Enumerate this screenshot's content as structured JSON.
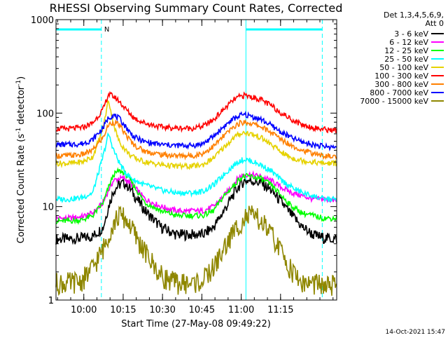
{
  "chart_data": {
    "type": "line",
    "title": "RHESSI Observing Summary Count Rates, Corrected",
    "xlabel": "Start Time (27-May-08 09:49:22)",
    "ylabel_prefix": "Corrected Count Rate (s",
    "ylabel_sup1": "-1",
    "ylabel_mid": " detector",
    "ylabel_sup2": "-1",
    "ylabel_suffix": ")",
    "x_unit": "minutes since 09:49:22",
    "xlim": [
      0,
      107
    ],
    "ylim": [
      1,
      1000
    ],
    "yscale": "log",
    "x_ticks": [
      {
        "value": 10.6,
        "label": "10:00"
      },
      {
        "value": 25.6,
        "label": "10:15"
      },
      {
        "value": 40.6,
        "label": "10:30"
      },
      {
        "value": 55.6,
        "label": "10:45"
      },
      {
        "value": 70.6,
        "label": "11:00"
      },
      {
        "value": 85.6,
        "label": "11:15"
      }
    ],
    "y_ticks": [
      {
        "value": 1,
        "label": "1"
      },
      {
        "value": 10,
        "label": "10"
      },
      {
        "value": 100,
        "label": "100"
      },
      {
        "value": 1000,
        "label": "1000"
      }
    ],
    "legend_header": [
      "Det 1,3,4,5,6,9,",
      "Att 0"
    ],
    "legend_position": "right",
    "x": [
      0,
      5,
      10,
      14,
      18,
      20,
      22,
      24,
      26,
      28,
      30,
      34,
      40,
      46,
      52,
      56,
      60,
      64,
      68,
      70,
      72,
      74,
      78,
      82,
      86,
      90,
      94,
      98,
      102,
      107
    ],
    "series": [
      {
        "name": "3 - 6 keV",
        "color": "#000000",
        "values": [
          4.5,
          4.5,
          4.6,
          4.8,
          6,
          10,
          15,
          17,
          18,
          16,
          13,
          9,
          6,
          5,
          5,
          5,
          6,
          9,
          14,
          17,
          19,
          19,
          18,
          15,
          11,
          8,
          6,
          5,
          4.6,
          4.5
        ]
      },
      {
        "name": "6 - 12 keV",
        "color": "#ff00ff",
        "values": [
          7.5,
          7.5,
          7.8,
          8.5,
          11,
          15,
          19,
          20,
          20,
          18,
          16,
          12,
          10,
          9,
          9,
          9,
          10,
          13,
          18,
          21,
          22,
          22,
          21,
          19,
          16,
          14,
          13,
          12,
          12,
          11.5
        ]
      },
      {
        "name": "12 - 25 keV",
        "color": "#00ff00",
        "values": [
          7,
          7,
          7.2,
          8,
          11,
          16,
          22,
          24,
          23,
          20,
          16,
          11,
          9,
          8,
          8,
          8,
          9,
          13,
          17,
          20,
          21,
          21,
          20,
          17,
          13,
          10,
          8.5,
          8,
          7.5,
          7.5
        ]
      },
      {
        "name": "25 - 50 keV",
        "color": "#00ffff",
        "values": [
          12,
          12,
          12.5,
          14,
          35,
          60,
          40,
          30,
          24,
          21,
          19,
          17,
          15,
          14,
          14,
          14.5,
          17,
          22,
          28,
          31,
          32,
          31,
          28,
          24,
          19,
          16,
          14,
          13,
          12,
          12
        ]
      },
      {
        "name": "50 - 100 keV",
        "color": "#e6d200",
        "values": [
          29,
          29,
          30,
          34,
          70,
          140,
          75,
          50,
          42,
          36,
          33,
          30,
          28,
          27,
          27,
          28,
          33,
          43,
          55,
          60,
          62,
          60,
          55,
          46,
          38,
          33,
          31,
          30,
          29,
          29
        ]
      },
      {
        "name": "100 - 300 keV",
        "color": "#ff0000",
        "values": [
          68,
          68,
          70,
          78,
          110,
          160,
          150,
          135,
          115,
          100,
          88,
          78,
          71,
          69,
          69,
          72,
          85,
          110,
          140,
          150,
          155,
          150,
          140,
          120,
          100,
          85,
          75,
          70,
          67,
          65
        ]
      },
      {
        "name": "300 - 800 keV",
        "color": "#ff8000",
        "values": [
          35,
          35,
          36,
          40,
          55,
          75,
          80,
          75,
          62,
          52,
          45,
          39,
          36,
          35,
          35,
          37,
          44,
          57,
          72,
          78,
          80,
          78,
          72,
          62,
          52,
          45,
          40,
          37,
          35,
          34
        ]
      },
      {
        "name": "800 - 7000 keV",
        "color": "#0000ff",
        "values": [
          46,
          46,
          47,
          52,
          70,
          90,
          95,
          88,
          75,
          63,
          55,
          49,
          46,
          45,
          45,
          47,
          56,
          72,
          88,
          94,
          96,
          93,
          86,
          74,
          62,
          54,
          49,
          46,
          44,
          43
        ]
      },
      {
        "name": "7000 - 15000 keV",
        "color": "#8f8700",
        "values": [
          1.5,
          1.5,
          1.6,
          2.2,
          3.5,
          5,
          6.5,
          8,
          7.5,
          6.5,
          5,
          3.2,
          1.8,
          1.5,
          1.5,
          1.6,
          2.2,
          3.5,
          5.5,
          6.5,
          7.5,
          8,
          7,
          5,
          3.2,
          2,
          1.5,
          1.5,
          1.4,
          1.4
        ]
      }
    ],
    "annotations": {
      "attenuator_marker_label": "N",
      "cyan_solid_x": [
        0,
        72.4
      ],
      "cyan_dashed_x": [
        17.3,
        101.5
      ],
      "top_bars": [
        [
          0,
          17.3
        ],
        [
          72.4,
          101.5
        ]
      ]
    }
  },
  "timestamp": "14-Oct-2021 15:47"
}
